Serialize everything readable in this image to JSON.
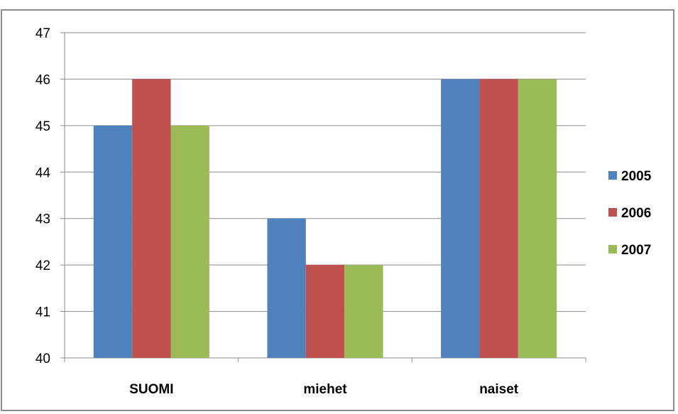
{
  "chart_data": {
    "type": "bar",
    "title": "",
    "xlabel": "",
    "ylabel": "",
    "categories": [
      "SUOMI",
      "miehet",
      "naiset"
    ],
    "series": [
      {
        "name": "2005",
        "values": [
          45,
          43,
          46
        ],
        "color": "#4f81bd"
      },
      {
        "name": "2006",
        "values": [
          46,
          42,
          46
        ],
        "color": "#c0504d"
      },
      {
        "name": "2007",
        "values": [
          45,
          42,
          46
        ],
        "color": "#9bbb59"
      }
    ],
    "ylim": [
      40,
      47
    ],
    "yticks": [
      40,
      41,
      42,
      43,
      44,
      45,
      46,
      47
    ],
    "grid": true,
    "legend_position": "right"
  }
}
